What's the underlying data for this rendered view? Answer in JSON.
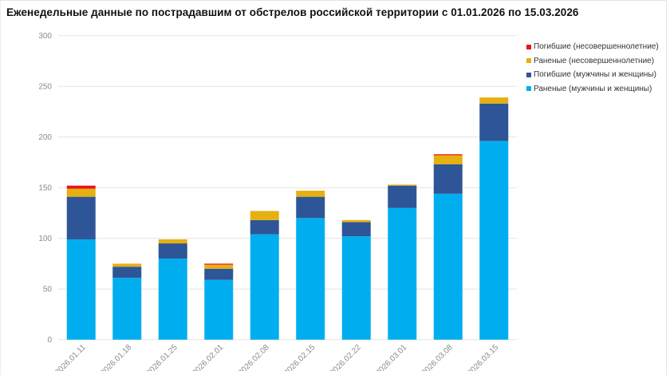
{
  "title": "Еженедельные данные по пострадавшим от обстрелов российской территории с 01.01.2026 по 15.03.2026",
  "chart_data": {
    "type": "bar",
    "stacked": true,
    "title": "Еженедельные данные по пострадавшим от обстрелов российской территории с 01.01.2026 по 15.03.2026",
    "xlabel": "",
    "ylabel": "",
    "ylim": [
      0,
      300
    ],
    "yticks": [
      0,
      50,
      100,
      150,
      200,
      250,
      300
    ],
    "grid": true,
    "legend_position": "top-right",
    "categories": [
      "2026.01.11",
      "2026.01.18",
      "2026.01.25",
      "2026.02.01",
      "2026.02.08",
      "2026.02.15",
      "2026.02.22",
      "2026.03.01",
      "2026.03.08",
      "2026.03.15"
    ],
    "series": [
      {
        "name": "Раненые (мужчины и женщины)",
        "color": "#00aeef",
        "values": [
          99,
          61,
          80,
          59,
          104,
          120,
          102,
          130,
          144,
          196
        ]
      },
      {
        "name": "Погибшие (мужчины и женщины)",
        "color": "#2e5597",
        "values": [
          42,
          11,
          15,
          11,
          14,
          21,
          14,
          22,
          29,
          37
        ]
      },
      {
        "name": "Раненые (несовершеннолетние)",
        "color": "#e6b012",
        "values": [
          8,
          3,
          4,
          4,
          9,
          6,
          2,
          1,
          9,
          6
        ]
      },
      {
        "name": "Погибшие (несовершеннолетние)",
        "color": "#e8141c",
        "values": [
          3,
          0,
          0,
          1,
          0,
          0,
          0,
          0,
          1,
          0
        ]
      }
    ]
  },
  "legend": [
    {
      "label": "Погибшие (несовершеннолетние)",
      "color": "#e8141c"
    },
    {
      "label": "Раненые (несовершеннолетние)",
      "color": "#e6b012"
    },
    {
      "label": "Погибшие (мужчины и женщины)",
      "color": "#2e5597"
    },
    {
      "label": "Раненые (мужчины и женщины)",
      "color": "#00aeef"
    }
  ]
}
